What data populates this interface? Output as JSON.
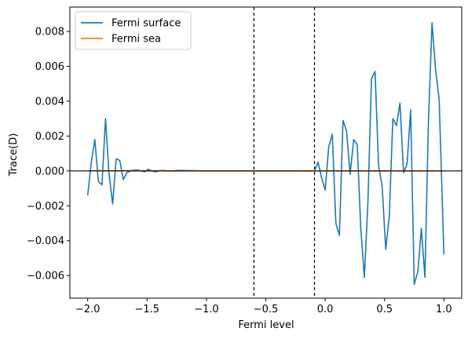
{
  "chart_data": {
    "type": "line",
    "xlabel": "Fermi level",
    "ylabel": "Trace(D)",
    "xlim": [
      -2.15,
      1.15
    ],
    "ylim": [
      -0.0073,
      0.0094
    ],
    "xticks": [
      -2.0,
      -1.5,
      -1.0,
      -0.5,
      0.0,
      0.5,
      1.0
    ],
    "xtick_labels": [
      "−2.0",
      "−1.5",
      "−1.0",
      "−0.5",
      "0.0",
      "0.5",
      "1.0"
    ],
    "yticks": [
      -0.006,
      -0.004,
      -0.002,
      0.0,
      0.002,
      0.004,
      0.006,
      0.008
    ],
    "ytick_labels": [
      "−0.006",
      "−0.004",
      "−0.002",
      "0.000",
      "0.002",
      "0.004",
      "0.006",
      "0.008"
    ],
    "hlines": [
      0.0
    ],
    "vlines": [
      -0.6,
      -0.09
    ],
    "grid": false,
    "legend_position": "upper-left",
    "series": [
      {
        "name": "Fermi surface",
        "color": "#1f77b4",
        "x": [
          -2.0,
          -1.97,
          -1.94,
          -1.91,
          -1.88,
          -1.85,
          -1.82,
          -1.79,
          -1.76,
          -1.73,
          -1.7,
          -1.67,
          -1.64,
          -1.61,
          -1.58,
          -1.55,
          -1.52,
          -1.49,
          -1.46,
          -1.43,
          -1.4,
          -1.37,
          -1.34,
          -1.31,
          -1.28,
          -1.25,
          -1.0,
          -0.5,
          -0.1,
          -0.09,
          -0.06,
          -0.03,
          0.0,
          0.03,
          0.06,
          0.09,
          0.12,
          0.15,
          0.18,
          0.21,
          0.24,
          0.27,
          0.3,
          0.33,
          0.36,
          0.39,
          0.42,
          0.45,
          0.48,
          0.51,
          0.54,
          0.57,
          0.6,
          0.63,
          0.66,
          0.69,
          0.72,
          0.75,
          0.78,
          0.81,
          0.84,
          0.87,
          0.9,
          0.93,
          0.96,
          1.0
        ],
        "y": [
          -0.0014,
          0.0005,
          0.0018,
          -0.0006,
          -0.0008,
          0.003,
          -0.0002,
          -0.0019,
          0.0007,
          0.0006,
          -0.0005,
          -0.0001,
          0.0,
          5e-05,
          5e-05,
          0.0,
          -5e-05,
          0.0001,
          0.0,
          -5e-05,
          0.0,
          3e-05,
          0.0,
          0.0,
          0.0,
          3e-05,
          0.0,
          0.0,
          0.0,
          0.0,
          0.0005,
          -0.0004,
          -0.0011,
          0.0014,
          0.0021,
          -0.003,
          -0.0037,
          0.0029,
          0.0023,
          -0.0002,
          0.0018,
          0.0015,
          -0.0033,
          -0.0061,
          -0.0018,
          0.0053,
          0.0057,
          0.0003,
          -0.0009,
          -0.0045,
          -0.0026,
          0.003,
          0.0026,
          0.0039,
          -0.0001,
          0.0004,
          0.0035,
          -0.0065,
          -0.0058,
          -0.0033,
          -0.0061,
          0.0029,
          0.0085,
          0.0058,
          0.0041,
          -0.0048
        ]
      },
      {
        "name": "Fermi sea",
        "color": "#ff7f0e",
        "x": [
          -2.0,
          -1.9,
          -1.8,
          -1.7,
          -1.6,
          -1.5,
          -1.4,
          -1.3,
          -1.2,
          -1.0,
          -0.5,
          0.0,
          0.5,
          1.0
        ],
        "y": [
          0.0,
          2e-05,
          1e-05,
          2e-05,
          1e-05,
          0.0,
          1e-05,
          0.0,
          0.0,
          0.0,
          0.0,
          0.0,
          0.0,
          0.0
        ]
      }
    ]
  }
}
